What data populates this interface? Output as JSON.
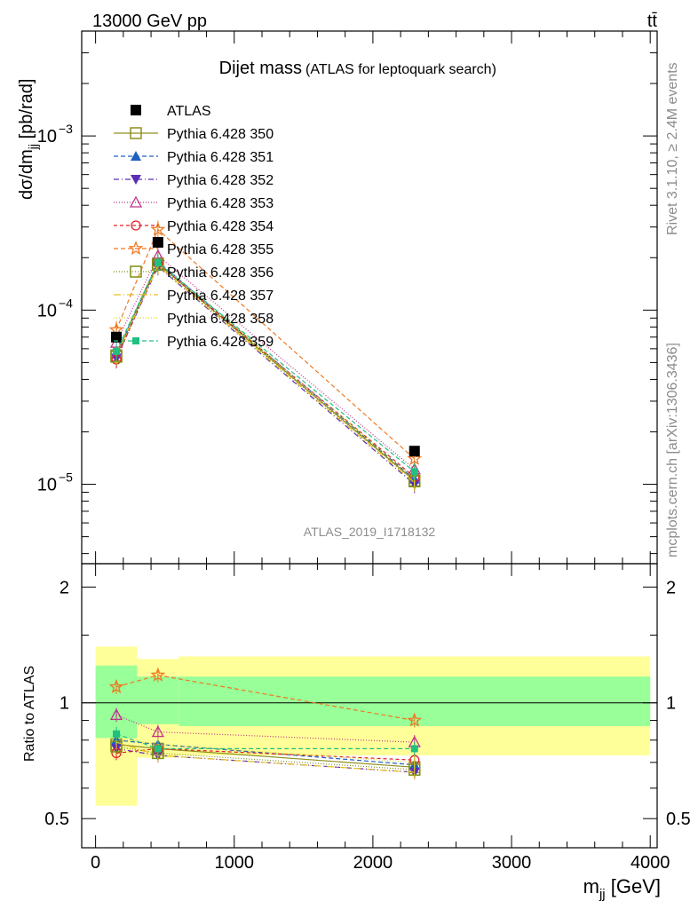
{
  "header": {
    "energy_label": "13000 GeV pp",
    "process_label": "tt̄"
  },
  "side_labels": {
    "rivet": "Rivet 3.1.10, ≥ 2.4M events",
    "mcplots": "mcplots.cern.ch [arXiv:1306.3436]"
  },
  "chart_data": [
    {
      "type": "line",
      "title": "Dijet mass",
      "subtitle": "(ATLAS for leptoquark search)",
      "ylabel": "dσ/dm_jj [pb/rad]",
      "xlabel": "m_jj [GeV]",
      "analysis_label": "ATLAS_2019_I1718132",
      "yscale": "log",
      "ylim": [
        3.5e-06,
        0.004
      ],
      "xlim": [
        -100,
        4050
      ],
      "y_ticks": [
        {
          "value": 1e-05,
          "label": "10",
          "exp": "−5"
        },
        {
          "value": 0.0001,
          "label": "10",
          "exp": "−4"
        },
        {
          "value": 0.001,
          "label": "10",
          "exp": "−3"
        }
      ],
      "legend_position": "top-left",
      "x": [
        150,
        450,
        2300
      ],
      "reference": {
        "name": "ATLAS",
        "values": [
          7e-05,
          0.000245,
          1.55e-05
        ],
        "color": "#000000"
      },
      "series": [
        {
          "name": "Pythia 6.428 350",
          "values": [
            5.5e-05,
            0.000185,
            1.05e-05
          ],
          "color": "#8f8f21",
          "marker": "square-open",
          "dash": ""
        },
        {
          "name": "Pythia 6.428 351",
          "values": [
            5.6e-05,
            0.00019,
            1.07e-05
          ],
          "color": "#1f5fbf",
          "marker": "triangle-up",
          "dash": "5,3"
        },
        {
          "name": "Pythia 6.428 352",
          "values": [
            5.3e-05,
            0.000178,
            1e-05
          ],
          "color": "#5a2db5",
          "marker": "triangle-down",
          "dash": "6,3,1,3"
        },
        {
          "name": "Pythia 6.428 353",
          "values": [
            6.5e-05,
            0.000205,
            1.22e-05
          ],
          "color": "#c0318a",
          "marker": "triangle-open",
          "dash": "1,2"
        },
        {
          "name": "Pythia 6.428 354",
          "values": [
            5.2e-05,
            0.000185,
            1.1e-05
          ],
          "color": "#e0202a",
          "marker": "circle-open",
          "dash": "4,3"
        },
        {
          "name": "Pythia 6.428 355",
          "values": [
            7.7e-05,
            0.00029,
            1.4e-05
          ],
          "color": "#f07820",
          "marker": "star-open",
          "dash": "5,3"
        },
        {
          "name": "Pythia 6.428 356",
          "values": [
            5.4e-05,
            0.000182,
            1.04e-05
          ],
          "color": "#7f8f10",
          "marker": "square-open",
          "dash": "1,2"
        },
        {
          "name": "Pythia 6.428 357",
          "values": [
            5.5e-05,
            0.00018,
            1.02e-05
          ],
          "color": "#e8c020",
          "marker": "none",
          "dash": "8,3,1,3"
        },
        {
          "name": "Pythia 6.428 358",
          "values": [
            5.7e-05,
            0.00019,
            1.08e-05
          ],
          "color": "#d7d720",
          "marker": "none",
          "dash": "1,2"
        },
        {
          "name": "Pythia 6.428 359",
          "values": [
            5.8e-05,
            0.000187,
            1.18e-05
          ],
          "color": "#20c080",
          "marker": "square-small",
          "dash": "5,3"
        }
      ]
    },
    {
      "type": "line",
      "ylabel": "Ratio to ATLAS",
      "yscale": "log",
      "ylim": [
        0.42,
        2.3
      ],
      "y_ticks": [
        0.5,
        1,
        2
      ],
      "x_ticks": [
        0,
        1000,
        2000,
        3000,
        4000
      ],
      "x": [
        150,
        450,
        2300
      ],
      "bands": {
        "bins": [
          [
            0,
            300
          ],
          [
            300,
            600
          ],
          [
            600,
            4000
          ]
        ],
        "green": [
          [
            0.81,
            1.25
          ],
          [
            0.88,
            1.17
          ],
          [
            0.87,
            1.17
          ]
        ],
        "yellow": [
          [
            0.54,
            1.4
          ],
          [
            0.72,
            1.3
          ],
          [
            0.73,
            1.32
          ]
        ]
      },
      "series": [
        {
          "name": "Pythia 6.428 350",
          "values": [
            0.78,
            0.76,
            0.68
          ]
        },
        {
          "name": "Pythia 6.428 351",
          "values": [
            0.8,
            0.78,
            0.69
          ]
        },
        {
          "name": "Pythia 6.428 352",
          "values": [
            0.76,
            0.73,
            0.66
          ]
        },
        {
          "name": "Pythia 6.428 353",
          "values": [
            0.93,
            0.84,
            0.79
          ]
        },
        {
          "name": "Pythia 6.428 354",
          "values": [
            0.74,
            0.76,
            0.71
          ]
        },
        {
          "name": "Pythia 6.428 355",
          "values": [
            1.1,
            1.18,
            0.9
          ]
        },
        {
          "name": "Pythia 6.428 356",
          "values": [
            0.77,
            0.74,
            0.67
          ]
        },
        {
          "name": "Pythia 6.428 357",
          "values": [
            0.79,
            0.73,
            0.66
          ]
        },
        {
          "name": "Pythia 6.428 358",
          "values": [
            0.81,
            0.78,
            0.7
          ]
        },
        {
          "name": "Pythia 6.428 359",
          "values": [
            0.83,
            0.76,
            0.76
          ]
        }
      ]
    }
  ]
}
